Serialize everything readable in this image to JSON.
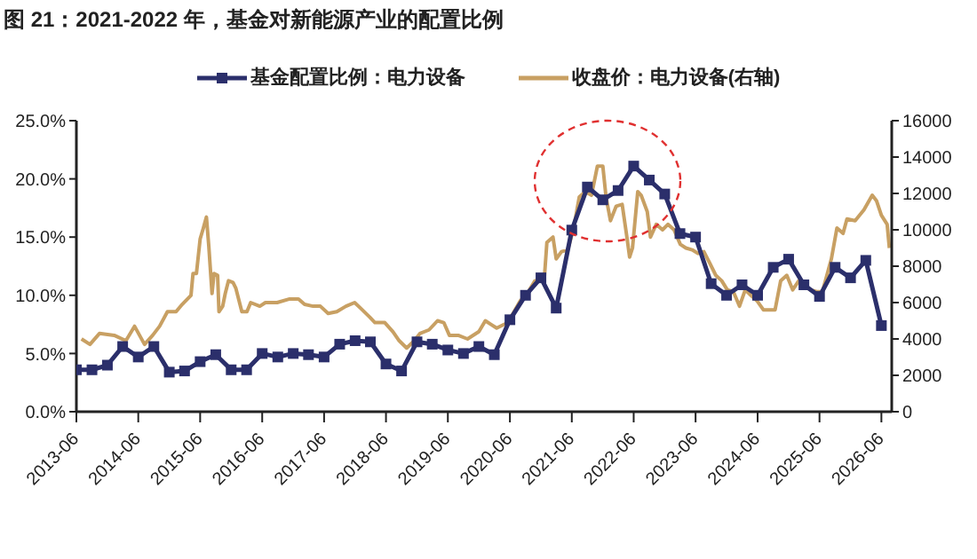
{
  "chart_data": {
    "type": "line",
    "title": "图 21：2021-2022 年，基金对新能源产业的配置比例",
    "legend": "top",
    "xlim": [
      "2013-06",
      "2026-08"
    ],
    "xticks": [
      "2013-06",
      "2014-06",
      "2015-06",
      "2016-06",
      "2017-06",
      "2018-06",
      "2019-06",
      "2020-06",
      "2021-06",
      "2022-06",
      "2023-06",
      "2024-06",
      "2025-06",
      "2026-06"
    ],
    "ylim": [
      0,
      25
    ],
    "yticks": [
      {
        "value": 0,
        "label": "0.0%"
      },
      {
        "value": 5,
        "label": "5.0%"
      },
      {
        "value": 10,
        "label": "10.0%"
      },
      {
        "value": 15,
        "label": "15.0%"
      },
      {
        "value": 20,
        "label": "20.0%"
      },
      {
        "value": 25,
        "label": "25.0%"
      }
    ],
    "y2lim": [
      0,
      16000
    ],
    "y2ticks": [
      0,
      2000,
      4000,
      6000,
      8000,
      10000,
      12000,
      14000,
      16000
    ],
    "series": [
      {
        "name": "基金配置比例：电力设备",
        "color": "#2b2f6b",
        "marker": "square",
        "x": [
          "2013-06",
          "2013-09",
          "2013-12",
          "2014-03",
          "2014-06",
          "2014-09",
          "2014-12",
          "2015-03",
          "2015-06",
          "2015-09",
          "2015-12",
          "2016-03",
          "2016-06",
          "2016-09",
          "2016-12",
          "2017-03",
          "2017-06",
          "2017-09",
          "2017-12",
          "2018-03",
          "2018-06",
          "2018-09",
          "2018-12",
          "2019-03",
          "2019-06",
          "2019-09",
          "2019-12",
          "2020-03",
          "2020-06",
          "2020-09",
          "2020-12",
          "2021-03",
          "2021-06",
          "2021-09",
          "2021-12",
          "2022-03",
          "2022-06",
          "2022-09",
          "2022-12",
          "2023-03",
          "2023-06",
          "2023-09",
          "2023-12",
          "2024-03",
          "2024-06",
          "2024-09",
          "2024-12",
          "2025-03",
          "2025-06",
          "2025-09",
          "2025-12",
          "2026-03",
          "2026-06"
        ],
        "values": [
          3.6,
          3.6,
          4.0,
          5.6,
          4.7,
          5.6,
          3.4,
          3.5,
          4.3,
          4.9,
          3.6,
          3.6,
          5.0,
          4.7,
          5.0,
          4.9,
          4.7,
          5.8,
          6.1,
          6.0,
          4.1,
          3.5,
          6.0,
          5.8,
          5.3,
          5.0,
          5.6,
          4.9,
          7.9,
          10.0,
          11.5,
          8.9,
          15.6,
          19.3,
          18.2,
          19.0,
          21.1,
          19.9,
          18.7,
          15.3,
          15.0,
          11.0,
          10.0,
          10.9,
          10.0,
          12.4,
          13.1,
          10.9,
          9.9,
          12.4,
          11.5,
          13.0,
          7.4
        ]
      },
      {
        "name": "收盘价：电力设备(右轴)",
        "color": "#c8a063",
        "marker": "none",
        "axis": "y2",
        "x": [
          "2013-07-01",
          "2013-08-20",
          "2013-10-15",
          "2014-01-10",
          "2014-03-20",
          "2014-05-10",
          "2014-07-08",
          "2014-08-25",
          "2014-10-05",
          "2014-11-20",
          "2015-01-10",
          "2015-02-15",
          "2015-04-08",
          "2015-04-20",
          "2015-05-10",
          "2015-06-01",
          "2015-06-20",
          "2015-07-08",
          "2015-07-22",
          "2015-08-10",
          "2015-08-22",
          "2015-09-12",
          "2015-09-20",
          "2015-10-12",
          "2015-10-27",
          "2015-11-15",
          "2015-12-12",
          "2015-12-28",
          "2016-02-02",
          "2016-03-03",
          "2016-03-25",
          "2016-05-18",
          "2016-06-20",
          "2016-08-28",
          "2016-11-10",
          "2017-01-01",
          "2017-02-06",
          "2017-03-28",
          "2017-05-10",
          "2017-06-25",
          "2017-08-15",
          "2017-10-08",
          "2017-11-28",
          "2018-01-01",
          "2018-02-25",
          "2018-03-28",
          "2018-05-25",
          "2018-07-12",
          "2018-08-18",
          "2018-10-01",
          "2018-11-15",
          "2018-12-18",
          "2019-02-10",
          "2019-04-01",
          "2019-05-08",
          "2019-06-10",
          "2019-08-01",
          "2019-09-25",
          "2019-12-01",
          "2020-01-08",
          "2020-02-10",
          "2020-03-15",
          "2020-05-20",
          "2020-08-01",
          "2020-09-05",
          "2020-10-27",
          "2020-12-20",
          "2021-01-05",
          "2021-02-10",
          "2021-03-01",
          "2021-04-01",
          "2021-05-08",
          "2021-06-10",
          "2021-07-15",
          "2021-08-20",
          "2021-09-25",
          "2021-10-30",
          "2021-12-01",
          "2021-12-20",
          "2022-01-15",
          "2022-02-18",
          "2022-03-25",
          "2022-04-22",
          "2022-05-08",
          "2022-05-25",
          "2022-06-25",
          "2022-07-15",
          "2022-08-20",
          "2022-09-08",
          "2022-10-12",
          "2022-11-18",
          "2022-12-20",
          "2023-01-25",
          "2023-03-03",
          "2023-04-05",
          "2023-05-12",
          "2023-06-15",
          "2023-07-20",
          "2023-08-22",
          "2023-09-28",
          "2023-11-02",
          "2023-12-05",
          "2024-01-10",
          "2024-02-15",
          "2024-03-20",
          "2024-04-22",
          "2024-05-28",
          "2024-07-05",
          "2024-09-12",
          "2024-10-15",
          "2024-11-20",
          "2024-12-25",
          "2025-01-30",
          "2025-04-08",
          "2025-05-15",
          "2025-06-18",
          "2025-08-10",
          "2025-09-12",
          "2025-10-18",
          "2025-11-10",
          "2025-12-28",
          "2026-02-18",
          "2026-04-08",
          "2026-05-03",
          "2026-06-01",
          "2026-07-05",
          "2026-07-18"
        ],
        "values": [
          4000,
          3700,
          4300,
          4200,
          3900,
          4700,
          3700,
          4200,
          4700,
          5500,
          5500,
          5900,
          6400,
          7600,
          7600,
          9500,
          10100,
          10700,
          9100,
          6500,
          7600,
          7500,
          5500,
          5800,
          6500,
          7200,
          7100,
          6800,
          5500,
          5500,
          6000,
          5800,
          6000,
          6000,
          6200,
          6200,
          5900,
          5800,
          5800,
          5400,
          5500,
          5800,
          6000,
          5700,
          5200,
          4900,
          4900,
          4400,
          3900,
          3500,
          3900,
          4300,
          4500,
          5000,
          4900,
          4200,
          4200,
          4000,
          4400,
          5000,
          4800,
          4600,
          4900,
          6100,
          6400,
          7200,
          7200,
          9300,
          9600,
          8400,
          8800,
          8900,
          10000,
          11800,
          12100,
          11900,
          13500,
          13500,
          11800,
          10500,
          11300,
          11400,
          9600,
          8500,
          9000,
          12100,
          11900,
          11000,
          9600,
          10300,
          10000,
          10300,
          10000,
          9200,
          9000,
          8900,
          8700,
          8800,
          8200,
          7500,
          7200,
          6700,
          6600,
          5800,
          6700,
          6400,
          6100,
          5600,
          5600,
          7200,
          7500,
          6700,
          7200,
          6700,
          6600,
          6600,
          8400,
          10100,
          9800,
          10600,
          10500,
          11100,
          11900,
          11600,
          10800,
          10300,
          9000
        ]
      }
    ]
  }
}
